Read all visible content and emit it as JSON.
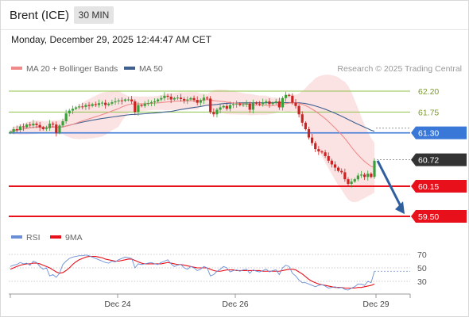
{
  "header": {
    "instrument": "Brent (ICE)",
    "timeframe": "30 MIN",
    "datetime": "Monday, December 29, 2025 12:44:47 AM CET"
  },
  "legend": {
    "ma20": "MA 20 + Bollinger Bands",
    "ma50": "MA 50",
    "credit": "Research © 2025 Trading Central"
  },
  "rsi_legend": {
    "rsi": "RSI",
    "ma": "9MA"
  },
  "colors": {
    "ma20": "#f08a8a",
    "ma50": "#3f5f8f",
    "bollinger_fill": "#fbdada",
    "candle_up": "#3aa03a",
    "candle_down": "#cc2222",
    "resistance_green": "#8fc24a",
    "pivot_blue": "#3a78d8",
    "support_red": "#e8111b",
    "current_price": "#333333",
    "arrow": "#2f5f9f",
    "rsi_line": "#6b8fd6"
  },
  "chart_data": {
    "type": "candlestick",
    "ylim": [
      59.4,
      62.5
    ],
    "x_ticks": [
      "Dec 24",
      "Dec 26",
      "Dec 29"
    ],
    "levels": [
      {
        "value": "62.20",
        "kind": "resistance"
      },
      {
        "value": "61.75",
        "kind": "resistance"
      },
      {
        "value": "61.30",
        "kind": "pivot"
      },
      {
        "value": "60.72",
        "kind": "current"
      },
      {
        "value": "60.15",
        "kind": "support"
      },
      {
        "value": "59.50",
        "kind": "support"
      }
    ],
    "forecast_arrow": {
      "from": 60.7,
      "to": 59.55
    },
    "series": [
      {
        "name": "MA 20 + Bollinger Bands"
      },
      {
        "name": "MA 50"
      }
    ],
    "closes": [
      61.32,
      61.38,
      61.36,
      61.44,
      61.42,
      61.48,
      61.46,
      61.5,
      61.47,
      61.42,
      61.38,
      61.4,
      61.5,
      61.48,
      61.3,
      61.46,
      61.55,
      61.72,
      61.78,
      61.82,
      61.85,
      61.87,
      61.86,
      61.9,
      61.88,
      61.92,
      61.9,
      61.94,
      61.95,
      61.9,
      61.93,
      61.96,
      61.98,
      62.0,
      61.99,
      62.02,
      62.02,
      61.98,
      61.75,
      61.9,
      61.88,
      61.93,
      61.94,
      61.96,
      61.98,
      62.02,
      62.05,
      62.1,
      62.08,
      62.02,
      62.05,
      62.06,
      62.03,
      62.0,
      62.02,
      62.05,
      62.01,
      61.95,
      62.0,
      62.06,
      62.04,
      61.75,
      61.7,
      61.8,
      61.85,
      61.88,
      61.82,
      61.9,
      61.92,
      61.93,
      61.9,
      61.91,
      61.93,
      61.8,
      61.95,
      61.93,
      61.92,
      61.96,
      61.98,
      61.92,
      61.95,
      61.98,
      61.85,
      62.05,
      62.12,
      62.1,
      61.95,
      61.88,
      61.7,
      61.52,
      61.38,
      61.2,
      61.08,
      60.95,
      60.9,
      60.88,
      60.8,
      60.7,
      60.62,
      60.55,
      60.48,
      60.45,
      60.3,
      60.2,
      60.25,
      60.3,
      60.38,
      60.4,
      60.35,
      60.42,
      60.35,
      60.7
    ],
    "rsi": {
      "ylim": [
        10,
        85
      ],
      "ticks": [
        70,
        50,
        30
      ],
      "rsi_values": [
        52,
        54,
        55,
        58,
        56,
        57,
        54,
        60,
        58,
        52,
        48,
        50,
        38,
        40,
        36,
        42,
        55,
        60,
        64,
        66,
        67,
        68,
        68,
        69,
        68,
        66,
        64,
        62,
        60,
        58,
        57,
        60,
        59,
        62,
        64,
        66,
        65,
        64,
        50,
        56,
        55,
        56,
        57,
        58,
        56,
        55,
        58,
        60,
        62,
        56,
        52,
        54,
        55,
        50,
        48,
        52,
        50,
        46,
        48,
        52,
        50,
        38,
        40,
        45,
        48,
        52,
        50,
        44,
        46,
        47,
        45,
        47,
        48,
        42,
        47,
        45,
        44,
        46,
        48,
        44,
        46,
        47,
        40,
        50,
        54,
        52,
        42,
        38,
        32,
        28,
        28,
        26,
        24,
        22,
        24,
        25,
        23,
        20,
        21,
        22,
        20,
        21,
        18,
        17,
        20,
        22,
        26,
        26,
        24,
        30,
        28,
        45
      ],
      "ma_values": [
        48,
        50,
        52,
        54,
        55,
        56,
        56,
        57,
        57,
        56,
        54,
        52,
        50,
        47,
        44,
        42,
        43,
        46,
        50,
        55,
        59,
        62,
        64,
        66,
        67,
        67,
        67,
        66,
        65,
        63,
        62,
        61,
        60,
        60,
        61,
        62,
        63,
        63,
        61,
        59,
        57,
        56,
        56,
        56,
        56,
        56,
        56,
        57,
        58,
        57,
        56,
        55,
        55,
        54,
        53,
        52,
        51,
        50,
        50,
        50,
        50,
        48,
        46,
        45,
        45,
        46,
        47,
        47,
        47,
        46,
        46,
        46,
        46,
        46,
        46,
        46,
        46,
        45,
        45,
        45,
        45,
        45,
        45,
        46,
        47,
        48,
        48,
        47,
        44,
        41,
        37,
        33,
        30,
        28,
        26,
        25,
        24,
        23,
        22,
        21,
        21,
        21,
        20,
        20,
        20,
        20,
        21,
        21,
        22,
        23,
        24,
        26
      ]
    }
  }
}
